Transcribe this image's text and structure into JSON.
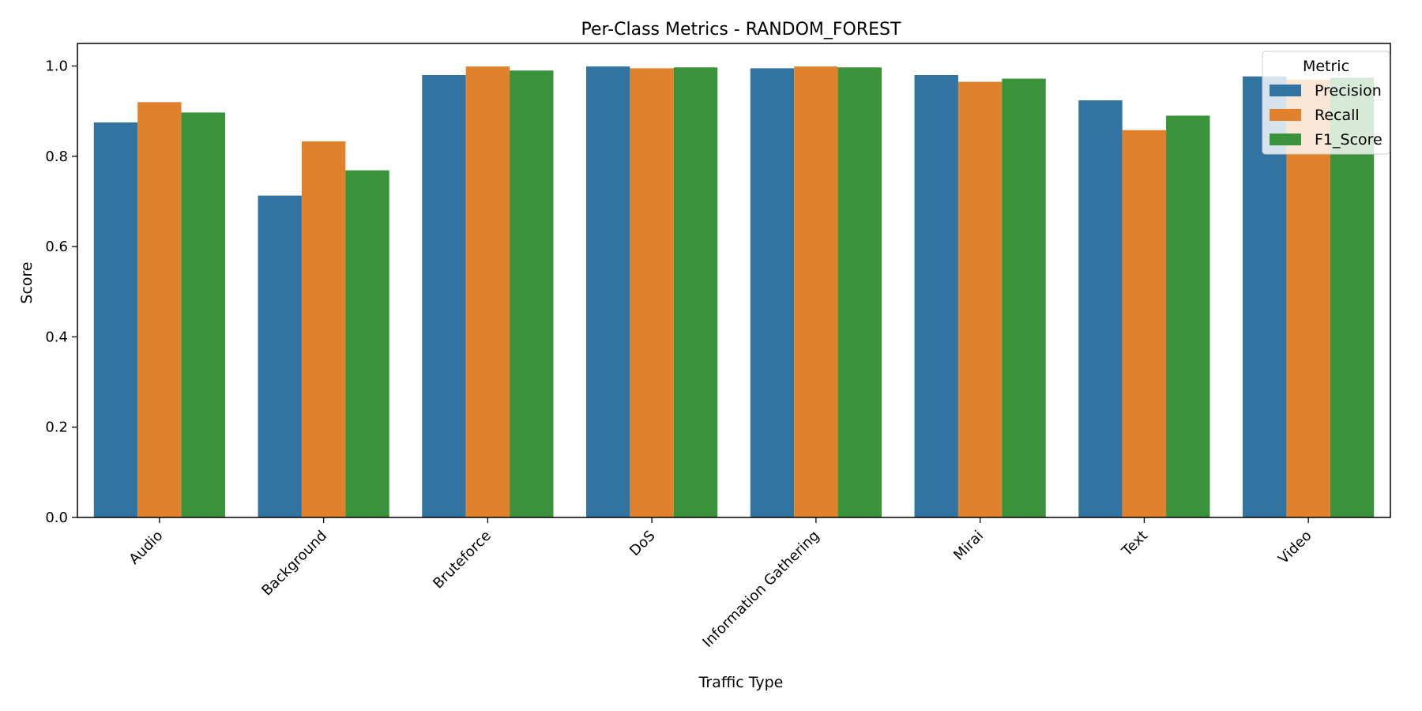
{
  "chart_data": {
    "type": "bar",
    "title": "Per-Class Metrics - RANDOM_FOREST",
    "xlabel": "Traffic Type",
    "ylabel": "Score",
    "ylim": [
      0,
      1.05
    ],
    "yticks": [
      "0.0",
      "0.2",
      "0.4",
      "0.6",
      "0.8",
      "1.0"
    ],
    "categories": [
      "Audio",
      "Background",
      "Bruteforce",
      "DoS",
      "Information Gathering",
      "Mirai",
      "Text",
      "Video"
    ],
    "legend": {
      "title": "Metric",
      "position": "top-right"
    },
    "grid": false,
    "series": [
      {
        "name": "Precision",
        "color": "#3274a1",
        "values": [
          0.875,
          0.713,
          0.98,
          0.999,
          0.995,
          0.98,
          0.924,
          0.977
        ]
      },
      {
        "name": "Recall",
        "color": "#e1812c",
        "values": [
          0.92,
          0.833,
          0.999,
          0.995,
          0.999,
          0.965,
          0.858,
          0.97
        ]
      },
      {
        "name": "F1_Score",
        "color": "#3a923a",
        "values": [
          0.897,
          0.769,
          0.99,
          0.997,
          0.997,
          0.972,
          0.89,
          0.974
        ]
      }
    ]
  }
}
